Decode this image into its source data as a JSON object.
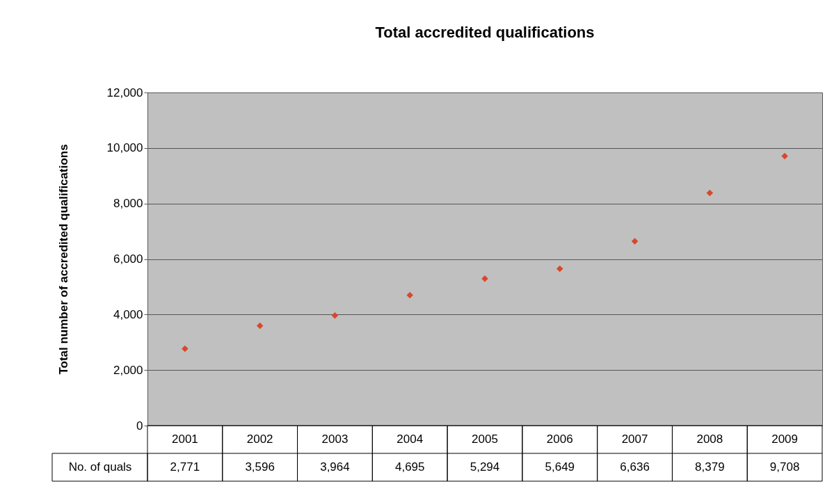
{
  "chart_data": {
    "type": "scatter",
    "title": "Total accredited qualifications",
    "ylabel": "Total number of accredited qualifications",
    "categories": [
      "2001",
      "2002",
      "2003",
      "2004",
      "2005",
      "2006",
      "2007",
      "2008",
      "2009"
    ],
    "series": [
      {
        "name": "No. of quals",
        "color": "#d9472b",
        "values": [
          2771,
          3596,
          3964,
          4695,
          5294,
          5649,
          6636,
          8379,
          9708
        ],
        "value_labels": [
          "2,771",
          "3,596",
          "3,964",
          "4,695",
          "5,294",
          "5,649",
          "6,636",
          "8,379",
          "9,708"
        ]
      }
    ],
    "ylim": [
      0,
      12000
    ],
    "yticks": [
      0,
      {
        "value": 2000,
        "label": "2,000"
      },
      {
        "value": 4000,
        "label": "4,000"
      },
      {
        "value": 6000,
        "label": "6,000"
      },
      {
        "value": 8000,
        "label": "8,000"
      },
      {
        "value": 10000,
        "label": "10,000"
      },
      {
        "value": 12000,
        "label": "12,000"
      }
    ],
    "grid": "y",
    "marker": "diamond"
  }
}
